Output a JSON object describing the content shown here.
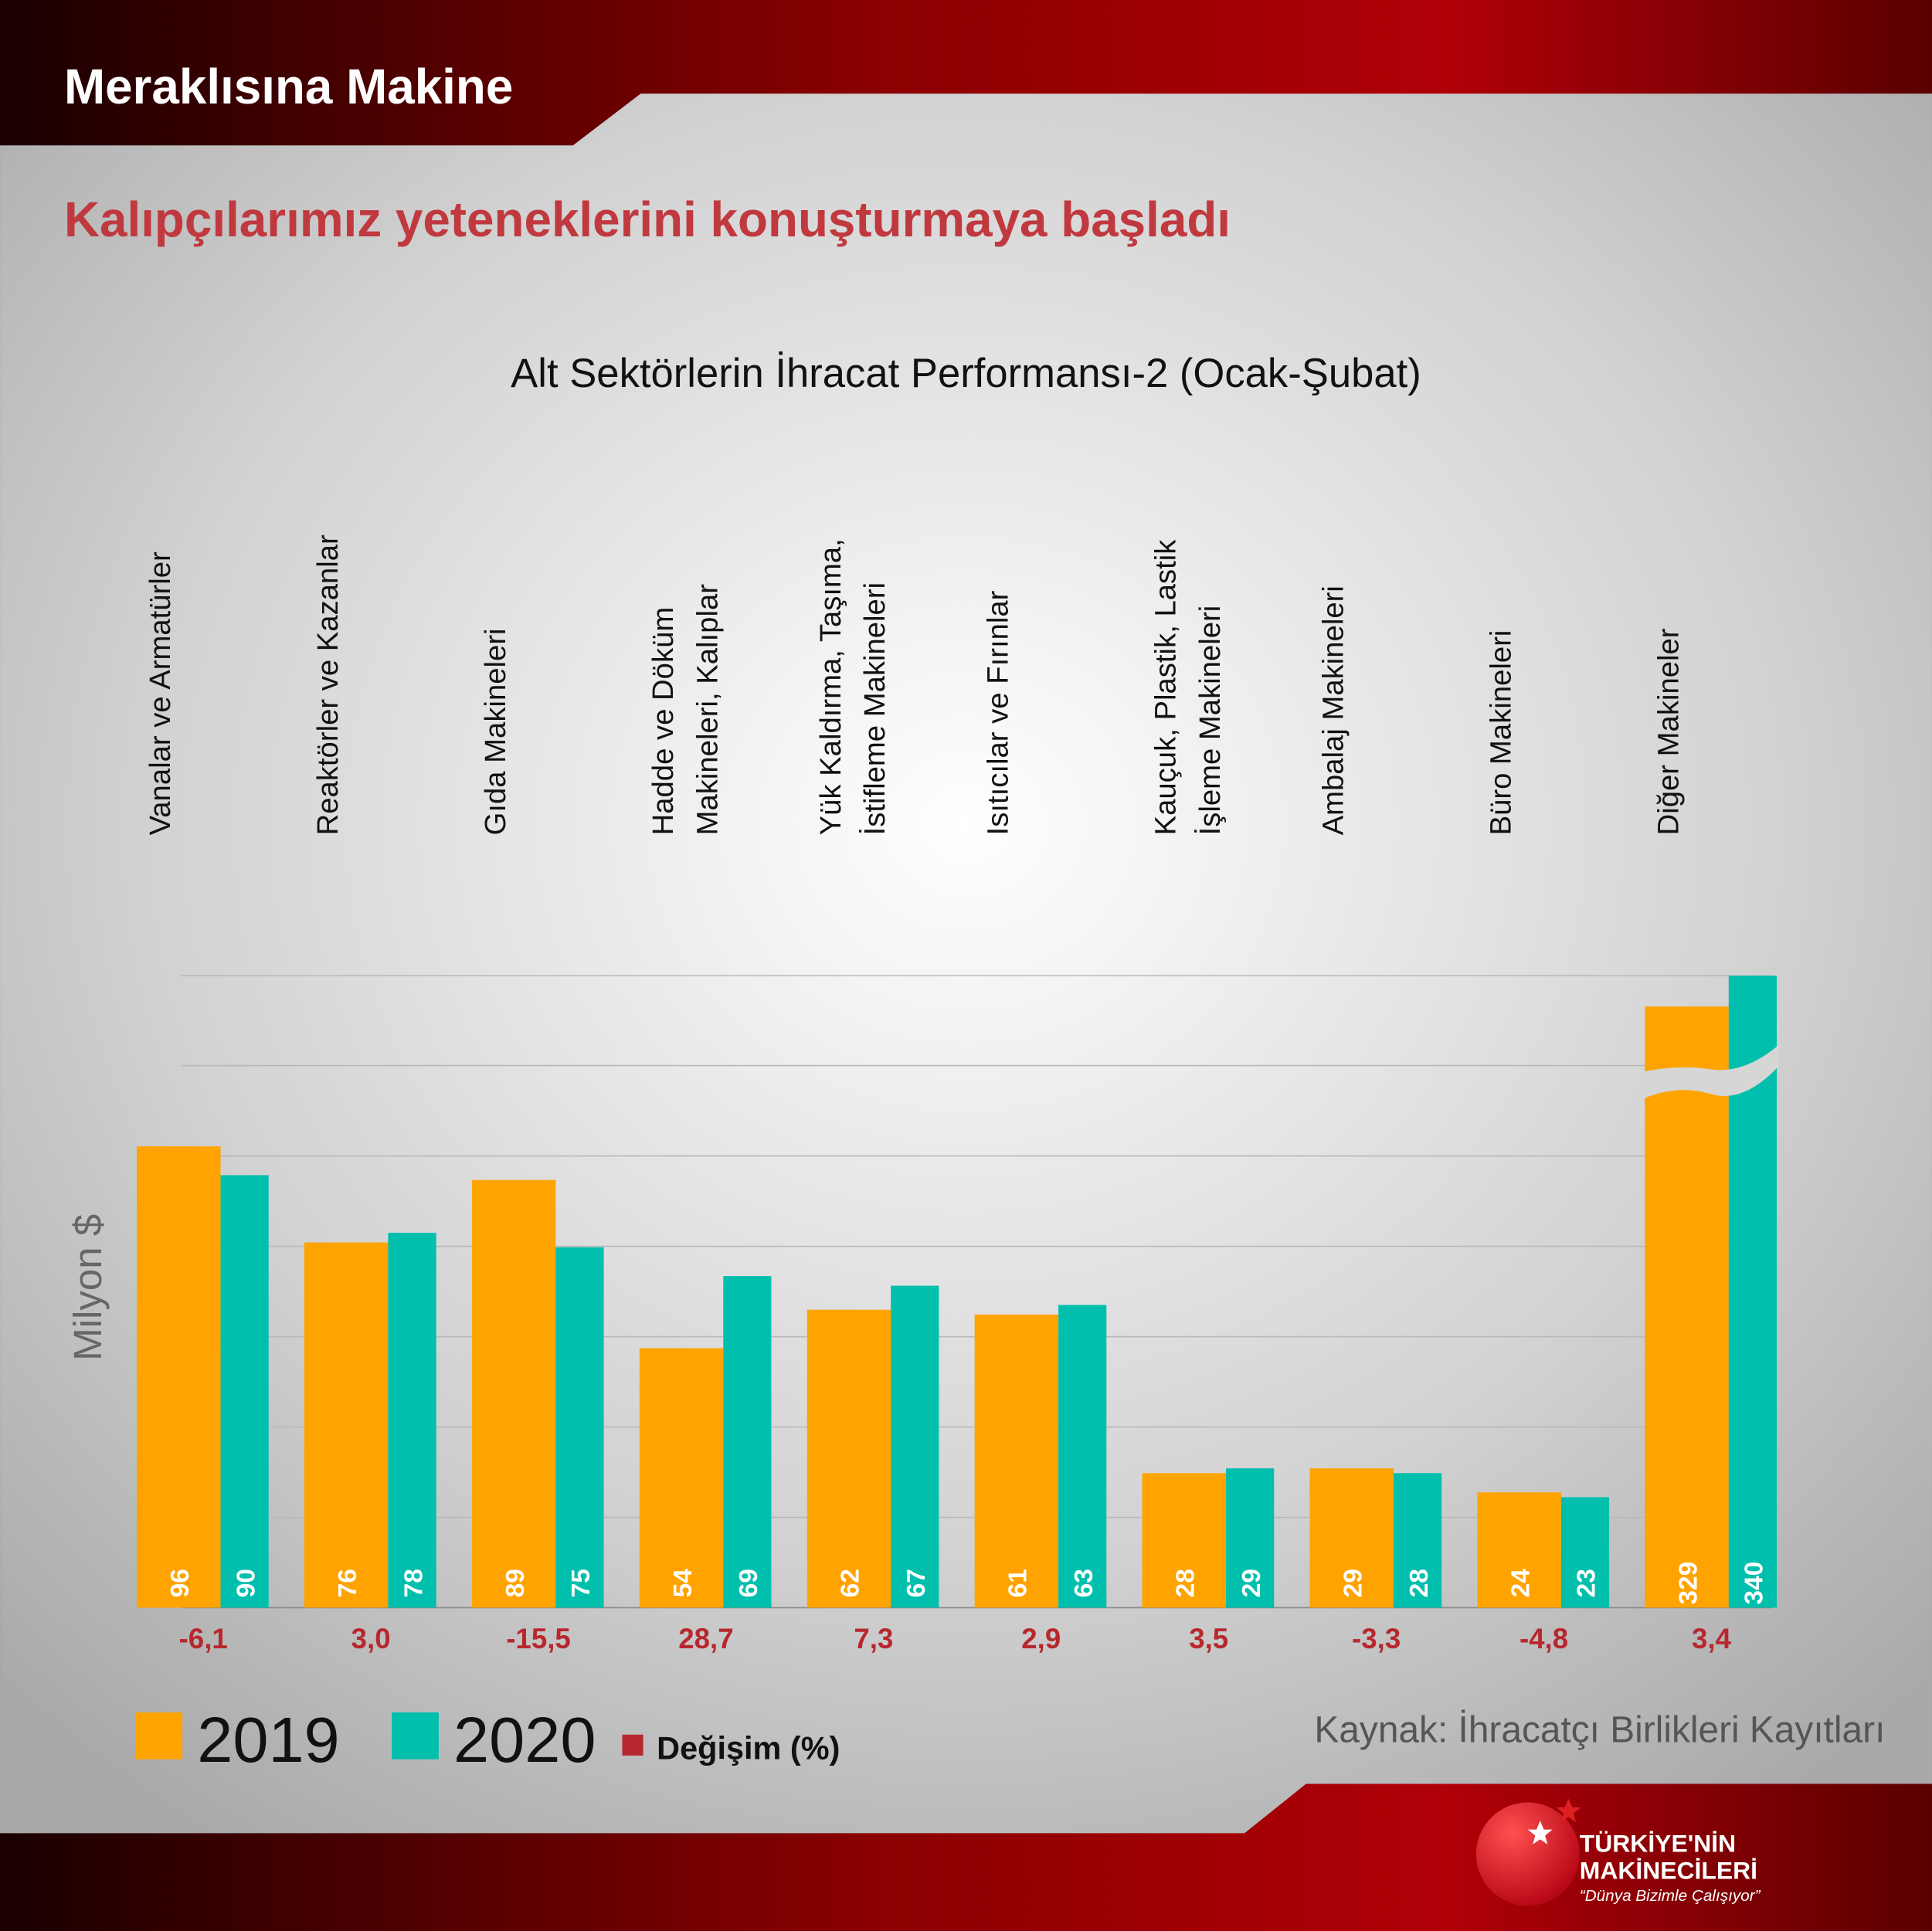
{
  "header": {
    "section": "Meraklısına Makine",
    "headline": "Kalıpçılarımız yeteneklerini konuşturmaya başladı"
  },
  "chart_data": {
    "type": "bar",
    "title": "Alt Sektörlerin İhracat Performansı-2  (Ocak-Şubat)",
    "y_label": "Milyon $",
    "categories": [
      [
        "Vanalar ve Armatürler"
      ],
      [
        "Reaktörler ve Kazanlar"
      ],
      [
        "Gıda Makineleri"
      ],
      [
        "Hadde ve Döküm",
        "Makineleri, Kalıplar"
      ],
      [
        "Yük Kaldırma, Taşıma,",
        "İstifleme Makineleri"
      ],
      [
        "Isıtıcılar ve Fırınlar"
      ],
      [
        "Kauçuk, Plastik, Lastik",
        "İşleme Makineleri"
      ],
      [
        "Ambalaj Makineleri"
      ],
      [
        "Büro Makineleri"
      ],
      [
        "Diğer Makineler"
      ]
    ],
    "series": [
      {
        "name": "2019",
        "color": "#ffa300",
        "values": [
          96,
          76,
          89,
          54,
          62,
          61,
          28,
          29,
          24,
          329
        ]
      },
      {
        "name": "2020",
        "color": "#00bfad",
        "values": [
          90,
          78,
          75,
          69,
          67,
          63,
          29,
          28,
          23,
          340
        ]
      }
    ],
    "change": {
      "name": "Değişim (%)",
      "color": "#b7282e",
      "values": [
        -6.1,
        3.0,
        -15.5,
        28.7,
        7.3,
        2.9,
        3.5,
        -3.3,
        -4.8,
        3.4
      ],
      "value_labels": [
        "-6,1",
        "3,0",
        "-15,5",
        "28,7",
        "7,3",
        "2,9",
        "3,5",
        "-3,3",
        "-4,8",
        "3,4"
      ]
    },
    "ylim": [
      0,
      131.5
    ],
    "yticks": [
      0,
      18.8,
      37.6,
      56.4,
      75.2,
      94,
      112.8,
      131.5
    ],
    "grid": true,
    "axis_break": true
  },
  "source": "Kaynak: İhracatçı Birlikleri Kayıtları",
  "logo": {
    "line1": "TÜRKİYE'NİN",
    "line2": "MAKİNECİLERİ",
    "slogan": "“Dünya Bizimle Çalışıyor”"
  }
}
